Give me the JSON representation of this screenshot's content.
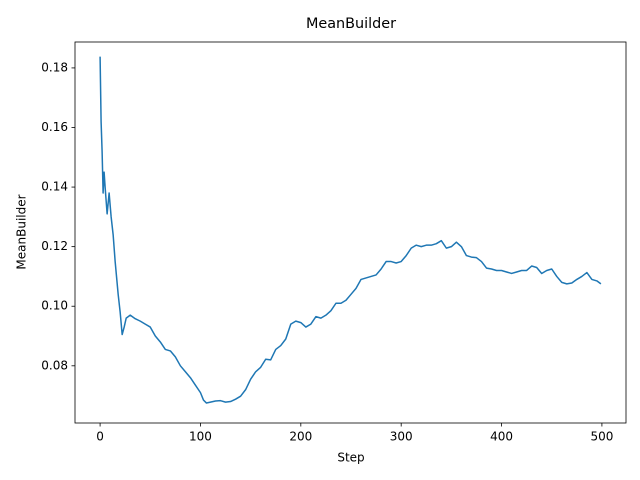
{
  "chart_data": {
    "type": "line",
    "title": "MeanBuilder",
    "x_label": "Step",
    "y_label": "MeanBuilder",
    "xlim": [
      -25,
      524
    ],
    "ylim": [
      0.0608,
      0.1887
    ],
    "xticks": [
      0,
      100,
      200,
      300,
      400,
      500
    ],
    "yticks": [
      0.08,
      {
        "value": 0.1,
        "label": "0.10"
      },
      0.12,
      0.14,
      0.16,
      0.18
    ],
    "grid": false,
    "series": [
      {
        "name": "MeanBuilder",
        "color": "#1f77b4",
        "x": [
          0,
          1,
          2,
          3,
          4,
          5,
          7,
          9,
          11,
          13,
          15,
          18,
          20,
          22,
          24,
          26,
          30,
          35,
          40,
          45,
          50,
          55,
          60,
          65,
          70,
          75,
          80,
          85,
          90,
          95,
          100,
          103,
          106,
          110,
          115,
          120,
          125,
          130,
          135,
          140,
          145,
          150,
          155,
          160,
          165,
          170,
          175,
          180,
          185,
          190,
          195,
          200,
          205,
          210,
          215,
          220,
          225,
          230,
          235,
          240,
          245,
          250,
          255,
          260,
          265,
          270,
          275,
          280,
          285,
          290,
          295,
          300,
          305,
          310,
          315,
          320,
          325,
          330,
          335,
          340,
          345,
          350,
          355,
          360,
          365,
          370,
          375,
          380,
          385,
          390,
          395,
          400,
          405,
          410,
          415,
          420,
          425,
          430,
          435,
          440,
          445,
          450,
          455,
          460,
          465,
          470,
          475,
          480,
          485,
          490,
          495,
          499
        ],
        "values": [
          0.1838,
          0.162,
          0.152,
          0.138,
          0.145,
          0.14,
          0.131,
          0.138,
          0.13,
          0.124,
          0.115,
          0.104,
          0.098,
          0.0905,
          0.093,
          0.096,
          0.097,
          0.0958,
          0.095,
          0.094,
          0.093,
          0.09,
          0.088,
          0.0855,
          0.085,
          0.083,
          0.08,
          0.078,
          0.076,
          0.0735,
          0.071,
          0.0685,
          0.0675,
          0.0678,
          0.0682,
          0.0683,
          0.0678,
          0.068,
          0.0688,
          0.0698,
          0.072,
          0.0755,
          0.078,
          0.0795,
          0.0822,
          0.082,
          0.0855,
          0.0868,
          0.089,
          0.094,
          0.095,
          0.0945,
          0.093,
          0.094,
          0.0965,
          0.096,
          0.097,
          0.0985,
          0.101,
          0.101,
          0.102,
          0.104,
          0.106,
          0.109,
          0.1095,
          0.11,
          0.1105,
          0.1125,
          0.115,
          0.115,
          0.1145,
          0.115,
          0.117,
          0.1195,
          0.1205,
          0.12,
          0.1205,
          0.1205,
          0.121,
          0.122,
          0.1195,
          0.12,
          0.1215,
          0.12,
          0.117,
          0.1165,
          0.1163,
          0.115,
          0.1128,
          0.1125,
          0.112,
          0.112,
          0.1115,
          0.111,
          0.1115,
          0.112,
          0.112,
          0.1135,
          0.113,
          0.111,
          0.112,
          0.1125,
          0.11,
          0.108,
          0.1075,
          0.1078,
          0.109,
          0.11,
          0.1113,
          0.109,
          0.1085,
          0.1075
        ]
      }
    ]
  }
}
